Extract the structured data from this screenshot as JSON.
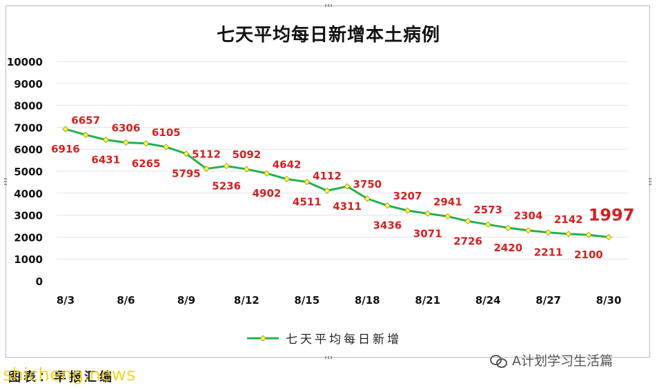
{
  "chart_data": {
    "type": "line",
    "title": "七天平均每日新增本土病例",
    "categories": [
      "8/3",
      "8/4",
      "8/5",
      "8/6",
      "8/7",
      "8/8",
      "8/9",
      "8/10",
      "8/11",
      "8/12",
      "8/13",
      "8/14",
      "8/15",
      "8/16",
      "8/17",
      "8/18",
      "8/19",
      "8/20",
      "8/21",
      "8/22",
      "8/23",
      "8/24",
      "8/25",
      "8/26",
      "8/27",
      "8/28",
      "8/29",
      "8/30"
    ],
    "x_tick_labels": [
      "8/3",
      "8/6",
      "8/9",
      "8/12",
      "8/15",
      "8/18",
      "8/21",
      "8/24",
      "8/27",
      "8/30"
    ],
    "series": [
      {
        "name": "七天平均每日新增",
        "color": "#22b14c",
        "marker_color": "#ffff33",
        "values": [
          6916,
          6657,
          6431,
          6306,
          6265,
          6105,
          5795,
          5112,
          5236,
          5092,
          4902,
          4642,
          4511,
          4112,
          4311,
          3750,
          3436,
          3207,
          3071,
          2941,
          2726,
          2573,
          2420,
          2304,
          2211,
          2142,
          2100,
          1997
        ]
      }
    ],
    "ylim": [
      0,
      10000
    ],
    "y_tick_labels": [
      "0",
      "1000",
      "2000",
      "3000",
      "4000",
      "5000",
      "6000",
      "7000",
      "8000",
      "9000",
      "10000"
    ],
    "grid": "horizontal",
    "legend_position": "bottom",
    "data_label_color": "#d42020",
    "highlight_last_label": true
  },
  "credit": "图表：早报汇编",
  "watermark_site": "shicheng.news",
  "watermark_account": "A计划学习生活篇"
}
